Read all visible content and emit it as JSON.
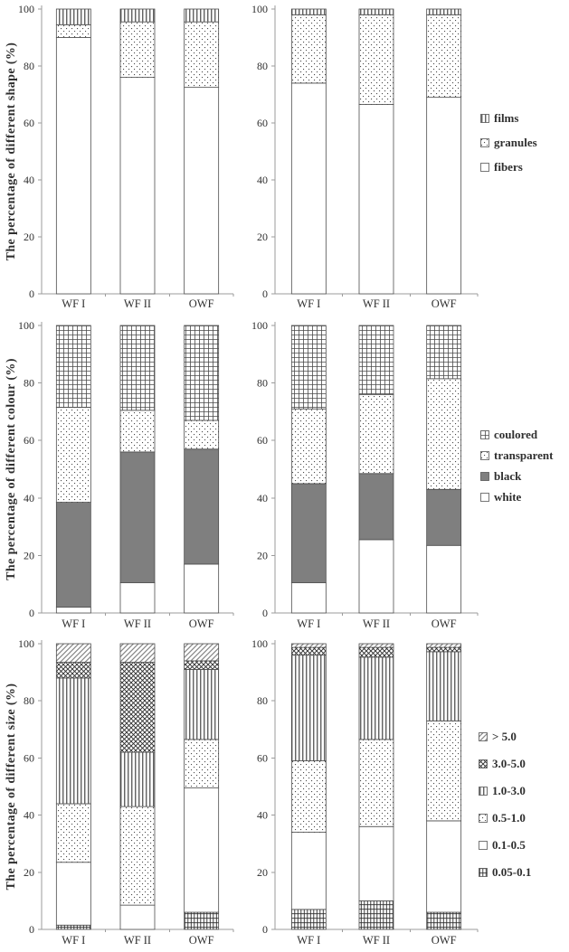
{
  "figure": {
    "background": "#ffffff",
    "text_color": "#2f2f2f",
    "axis_color": "#9b9b9b",
    "bar_outline_color": "#4d4d4d",
    "black_series_fill": "#7f7f7f"
  },
  "legends": {
    "shape": {
      "items": [
        {
          "label": "films",
          "pattern": "vlines"
        },
        {
          "label": "granules",
          "pattern": "dots"
        },
        {
          "label": "fibers",
          "pattern": "white"
        }
      ]
    },
    "colour": {
      "items": [
        {
          "label": "coulored",
          "pattern": "grid"
        },
        {
          "label": "transparent",
          "pattern": "dots"
        },
        {
          "label": "black",
          "pattern": "gray"
        },
        {
          "label": "white",
          "pattern": "white"
        }
      ]
    },
    "size": {
      "items": [
        {
          "label": "> 5.0",
          "pattern": "diaglight"
        },
        {
          "label": "3.0-5.0",
          "pattern": "diagdense"
        },
        {
          "label": "1.0-3.0",
          "pattern": "vlines"
        },
        {
          "label": "0.5-1.0",
          "pattern": "dots"
        },
        {
          "label": "0.1-0.5",
          "pattern": "white"
        },
        {
          "label": "0.05-0.1",
          "pattern": "plaid"
        }
      ]
    }
  },
  "chart_data": [
    {
      "id": "shape-left",
      "type": "bar",
      "stacked": true,
      "ylabel": "The percentage of different shape (%)",
      "categories": [
        "WF I",
        "WF II",
        "OWF"
      ],
      "ylim": [
        0,
        100
      ],
      "yticks": [
        0,
        20,
        40,
        60,
        80,
        100
      ],
      "series": [
        {
          "name": "fibers",
          "pattern": "white",
          "values": [
            90,
            76,
            72.5
          ]
        },
        {
          "name": "granules",
          "pattern": "dots",
          "values": [
            4.5,
            19.5,
            23
          ]
        },
        {
          "name": "films",
          "pattern": "vlines",
          "values": [
            5.5,
            4.5,
            4.5
          ]
        }
      ]
    },
    {
      "id": "shape-right",
      "type": "bar",
      "stacked": true,
      "ylabel": "",
      "categories": [
        "WF I",
        "WF II",
        "OWF"
      ],
      "ylim": [
        0,
        100
      ],
      "yticks": [
        0,
        20,
        40,
        60,
        80,
        100
      ],
      "series": [
        {
          "name": "fibers",
          "pattern": "white",
          "values": [
            74,
            66.5,
            69
          ]
        },
        {
          "name": "granules",
          "pattern": "dots",
          "values": [
            24,
            31.5,
            29
          ]
        },
        {
          "name": "films",
          "pattern": "vlines",
          "values": [
            2,
            2,
            2
          ]
        }
      ]
    },
    {
      "id": "colour-left",
      "type": "bar",
      "stacked": true,
      "ylabel": "The percentage of different colour (%)",
      "categories": [
        "WF I",
        "WF II",
        "OWF"
      ],
      "ylim": [
        0,
        100
      ],
      "yticks": [
        0,
        20,
        40,
        60,
        80,
        100
      ],
      "series": [
        {
          "name": "white",
          "pattern": "white",
          "values": [
            2,
            10.5,
            17
          ]
        },
        {
          "name": "black",
          "pattern": "gray",
          "values": [
            36.5,
            45.5,
            40
          ]
        },
        {
          "name": "transparent",
          "pattern": "dots",
          "values": [
            33,
            14.5,
            10
          ]
        },
        {
          "name": "coulored",
          "pattern": "grid",
          "values": [
            28.5,
            29.5,
            33
          ]
        }
      ]
    },
    {
      "id": "colour-right",
      "type": "bar",
      "stacked": true,
      "ylabel": "",
      "categories": [
        "WF I",
        "WF II",
        "OWF"
      ],
      "ylim": [
        0,
        100
      ],
      "yticks": [
        0,
        20,
        40,
        60,
        80,
        100
      ],
      "series": [
        {
          "name": "white",
          "pattern": "white",
          "values": [
            10.5,
            25.5,
            23.5
          ]
        },
        {
          "name": "black",
          "pattern": "gray",
          "values": [
            34.5,
            23,
            19.5
          ]
        },
        {
          "name": "transparent",
          "pattern": "dots",
          "values": [
            26,
            27.5,
            38.5
          ]
        },
        {
          "name": "coulored",
          "pattern": "grid",
          "values": [
            29,
            24,
            18.5
          ]
        }
      ]
    },
    {
      "id": "size-left",
      "type": "bar",
      "stacked": true,
      "ylabel": "The percentage of different size (%)",
      "categories": [
        "WF I",
        "WF II",
        "OWF"
      ],
      "ylim": [
        0,
        100
      ],
      "yticks": [
        0,
        20,
        40,
        60,
        80,
        100
      ],
      "series": [
        {
          "name": "0.05-0.1",
          "pattern": "plaid",
          "values": [
            1.5,
            0,
            6
          ]
        },
        {
          "name": "0.1-0.5",
          "pattern": "white",
          "values": [
            22,
            8.5,
            43.5
          ]
        },
        {
          "name": "0.5-1.0",
          "pattern": "dots",
          "values": [
            20.5,
            34.5,
            17
          ]
        },
        {
          "name": "1.0-3.0",
          "pattern": "vlines",
          "values": [
            44,
            19,
            24.5
          ]
        },
        {
          "name": "3.0-5.0",
          "pattern": "diagdense",
          "values": [
            5.5,
            31.5,
            3
          ]
        },
        {
          "name": "> 5.0",
          "pattern": "diaglight",
          "values": [
            6.5,
            6.5,
            6
          ]
        }
      ]
    },
    {
      "id": "size-right",
      "type": "bar",
      "stacked": true,
      "ylabel": "",
      "categories": [
        "WF I",
        "WF II",
        "OWF"
      ],
      "ylim": [
        0,
        100
      ],
      "yticks": [
        0,
        20,
        40,
        60,
        80,
        100
      ],
      "series": [
        {
          "name": "0.05-0.1",
          "pattern": "plaid",
          "values": [
            7,
            10,
            6
          ]
        },
        {
          "name": "0.1-0.5",
          "pattern": "white",
          "values": [
            27,
            26,
            32
          ]
        },
        {
          "name": "0.5-1.0",
          "pattern": "dots",
          "values": [
            25,
            30.5,
            35
          ]
        },
        {
          "name": "1.0-3.0",
          "pattern": "vlines",
          "values": [
            37,
            28.8,
            24.2
          ]
        },
        {
          "name": "3.0-5.0",
          "pattern": "diagdense",
          "values": [
            2.7,
            3.4,
            1.5
          ]
        },
        {
          "name": "> 5.0",
          "pattern": "diaglight",
          "values": [
            1.3,
            1.3,
            1.3
          ]
        }
      ]
    }
  ]
}
